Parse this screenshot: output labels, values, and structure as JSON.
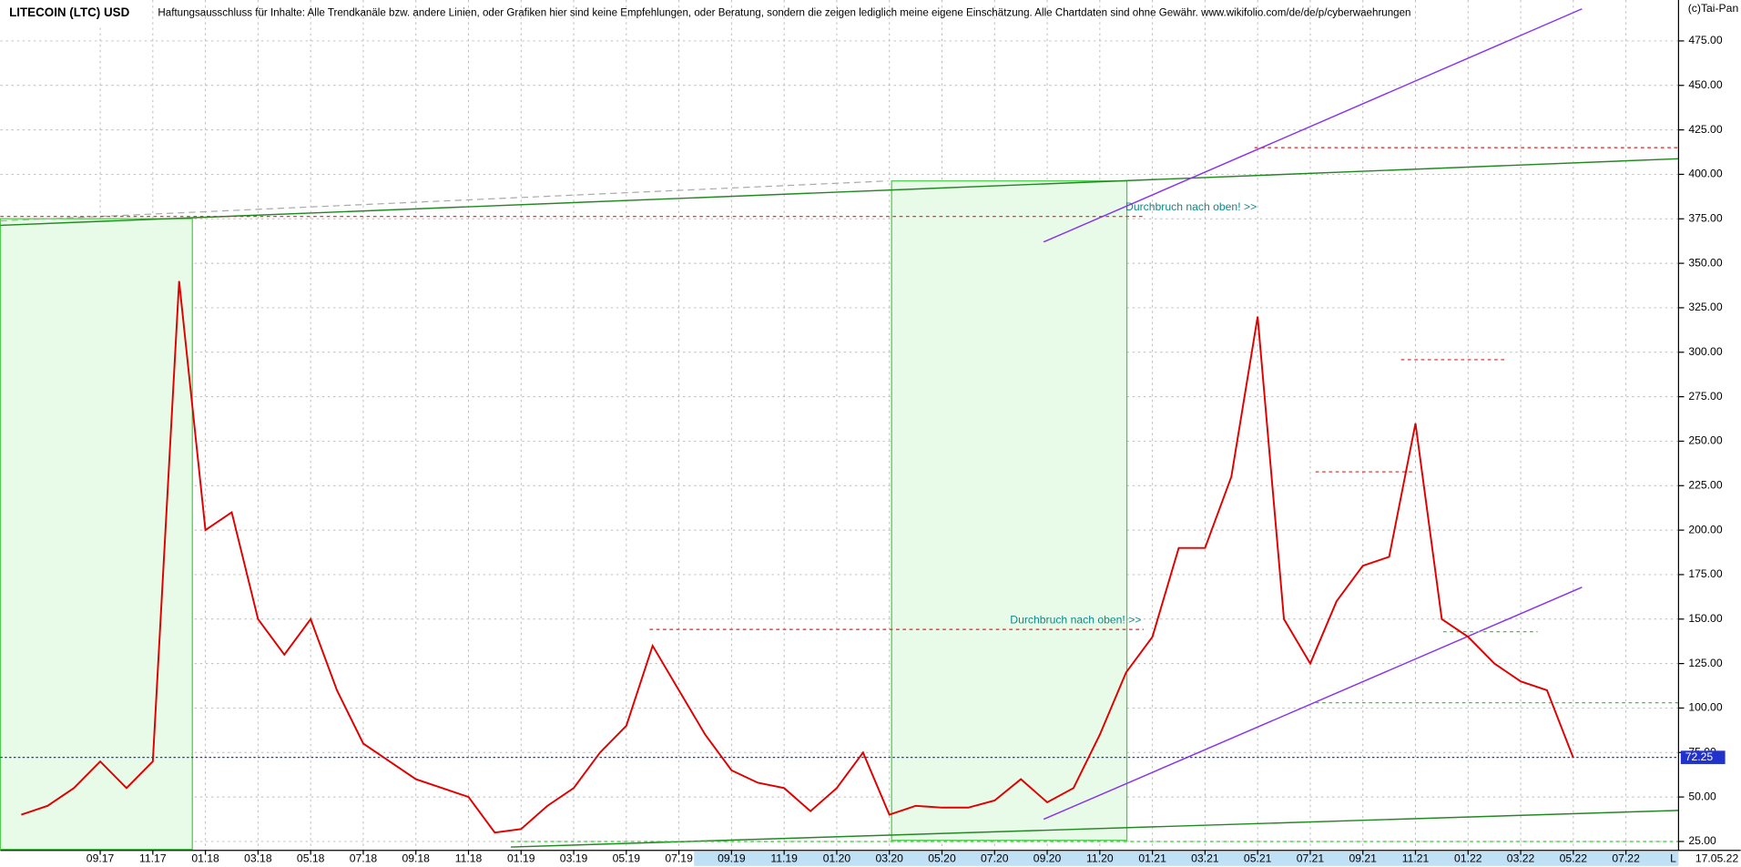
{
  "chart_data": {
    "type": "line",
    "title": "LITECOIN (LTC) USD",
    "subtitle": "Haftungsausschluss für Inhalte: Alle Trendkanäle bzw. andere Linien, oder Grafiken hier sind keine Empfehlungen, oder Beratung, sondern die zeigen lediglich meine eigene Einschätzung. Alle Chartdaten sind ohne Gewähr.  www.wikifolio.com/de/de/p/cyberwaehrungen",
    "source": "(c)Tai-Pan",
    "last_date": "17.05.22",
    "scale_mode": "L",
    "annotations": [
      "Durchbruch nach oben! >>",
      "Durchbruch nach oben! >>"
    ],
    "last_price": 72.25,
    "x": [
      "06.17",
      "07.17",
      "08.17",
      "09.17",
      "10.17",
      "11.17",
      "12.17",
      "01.18",
      "02.18",
      "03.18",
      "04.18",
      "05.18",
      "06.18",
      "07.18",
      "08.18",
      "09.18",
      "10.18",
      "11.18",
      "12.18",
      "01.19",
      "02.19",
      "03.19",
      "04.19",
      "05.19",
      "06.19",
      "07.19",
      "08.19",
      "09.19",
      "10.19",
      "11.19",
      "12.19",
      "01.20",
      "02.20",
      "03.20",
      "04.20",
      "05.20",
      "06.20",
      "07.20",
      "08.20",
      "09.20",
      "10.20",
      "11.20",
      "12.20",
      "01.21",
      "02.21",
      "03.21",
      "04.21",
      "05.21",
      "06.21",
      "07.21",
      "08.21",
      "09.21",
      "10.21",
      "11.21",
      "12.21",
      "01.22",
      "02.22",
      "03.22",
      "04.22",
      "05.22"
    ],
    "series": [
      {
        "name": "LTC",
        "color": "#e00000",
        "values": [
          40,
          45,
          55,
          70,
          55,
          70,
          340,
          200,
          210,
          150,
          130,
          150,
          110,
          80,
          70,
          60,
          55,
          50,
          30,
          32,
          45,
          55,
          75,
          90,
          135,
          110,
          85,
          65,
          58,
          55,
          42,
          55,
          75,
          40,
          45,
          44,
          44,
          48,
          60,
          47,
          55,
          85,
          120,
          140,
          190,
          190,
          230,
          320,
          150,
          125,
          160,
          180,
          185,
          260,
          150,
          140,
          125,
          115,
          110,
          72
        ]
      }
    ],
    "xticks": [
      "09.17",
      "11.17",
      "01.18",
      "03.18",
      "05.18",
      "07.18",
      "09.18",
      "11.18",
      "01.19",
      "03.19",
      "05.19",
      "07.19",
      "09.19",
      "11.19",
      "01.20",
      "03.20",
      "05.20",
      "07.20",
      "09.20",
      "11.20",
      "01.21",
      "03.21",
      "05.21",
      "07.21",
      "09.21",
      "11.21",
      "01.22",
      "03.22",
      "05.22",
      "07.22"
    ],
    "ylim": [
      20,
      498
    ],
    "yticks": [
      {
        "value": 25,
        "label": "25.00"
      },
      {
        "value": 50,
        "label": "50.00"
      },
      {
        "value": 75,
        "label": "75.00"
      },
      {
        "value": 100,
        "label": "100.00"
      },
      {
        "value": 125,
        "label": "125.00"
      },
      {
        "value": 150,
        "label": "150.00"
      },
      {
        "value": 175,
        "label": "175.00"
      },
      {
        "value": 200,
        "label": "200.00"
      },
      {
        "value": 225,
        "label": "225.00"
      },
      {
        "value": 250,
        "label": "250.00"
      },
      {
        "value": 275,
        "label": "275.00"
      },
      {
        "value": 300,
        "label": "300.00"
      },
      {
        "value": 325,
        "label": "325.00"
      },
      {
        "value": 350,
        "label": "350.00"
      },
      {
        "value": 375,
        "label": "375.00"
      },
      {
        "value": 400,
        "label": "400.00"
      },
      {
        "value": 425,
        "label": "425.00"
      },
      {
        "value": 450,
        "label": "450.00"
      },
      {
        "value": 475,
        "label": "475.00"
      }
    ],
    "grid": true
  }
}
